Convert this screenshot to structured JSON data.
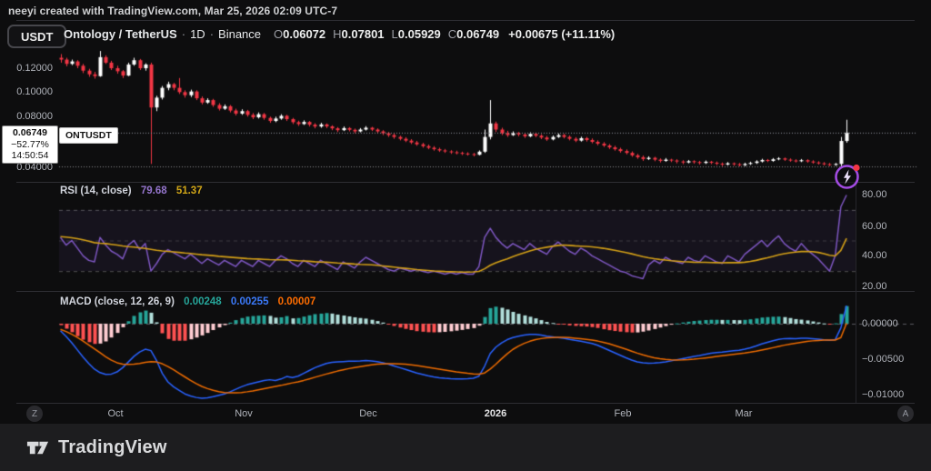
{
  "attribution": "neeyi created with TradingView.com, Mar 25, 2026 02:09 UTC-7",
  "toolbar": {
    "currency_button": "USDT"
  },
  "legend": {
    "symbol_title": "Ontology / TetherUS",
    "interval": "1D",
    "exchange": "Binance",
    "separator": "·",
    "o_label": "O",
    "o_value": "0.06072",
    "h_label": "H",
    "h_value": "0.07801",
    "l_label": "L",
    "l_value": "0.05929",
    "c_label": "C",
    "c_value": "0.06749",
    "change": "+0.00675 (+11.11%)"
  },
  "price_scale": {
    "t0": "0.12000",
    "t1": "0.10000",
    "t2": "0.08000",
    "t3": "0.04000"
  },
  "price_label": {
    "price": "0.06749",
    "change_pct": "−52.77%",
    "countdown": "14:50:54"
  },
  "symbol_tag": "ONTUSDT",
  "rsi_pane": {
    "title": "RSI (14, close)",
    "value_rsi": "79.68",
    "value_ma": "51.37",
    "s0": "80.00",
    "s1": "60.00",
    "s2": "40.00",
    "s3": "20.00"
  },
  "macd_pane": {
    "title": "MACD (close, 12, 26, 9)",
    "value_hist": "0.00248",
    "value_macd": "0.00255",
    "value_signal": "0.00007",
    "s0": "0.00000",
    "s1": "−0.00500",
    "s2": "−0.01000"
  },
  "time_axis": {
    "left_button": "Z",
    "right_button": "A",
    "m0": "Oct",
    "m1": "Nov",
    "m2": "Dec",
    "m3": "2026",
    "m4": "Feb",
    "m5": "Mar"
  },
  "footer": {
    "logo_text": "TradingView"
  },
  "colors": {
    "up": "#ffffff",
    "down": "#f23645",
    "rsi_line": "#7e57c2",
    "rsi_ma_line": "#d4a017",
    "rsi_value_text": "#9575cd",
    "rsi_ma_text": "#d0a517",
    "macd_line": "#2962ff",
    "signal_line": "#ef6c00",
    "hist_up_grow": "#26a69a",
    "hist_up_fall": "#b2dfdb",
    "hist_dn_fall": "#ff5252",
    "hist_dn_grow": "#ffcdd2",
    "hist_text": "#26a69a",
    "macd_text": "#3b79f7",
    "signal_text": "#ff6d00",
    "price_line": "#9598a1",
    "level_line": "#8a8a8e",
    "band_fill": "rgba(126,87,194,0.09)",
    "band_dash": "rgba(255,255,255,0.28)"
  },
  "chart_data": {
    "type": "candlestick_with_indicators",
    "symbol": "ONTUSDT",
    "interval": "1D",
    "price_scale_factor": 0.0001,
    "macd_scale_factor": 1e-05,
    "price_axis": {
      "ticks": [
        0.12,
        0.1,
        0.08,
        0.04
      ],
      "current_price": 0.06749,
      "level_line": 0.04
    },
    "rsi_axis": {
      "ticks": [
        80,
        60,
        40,
        20
      ],
      "band": [
        70,
        30
      ],
      "mid": 50
    },
    "macd_axis": {
      "ticks": [
        0,
        -0.005,
        -0.01
      ]
    },
    "candles": [
      [
        1285,
        1315,
        1245,
        1270
      ],
      [
        1270,
        1285,
        1215,
        1235
      ],
      [
        1235,
        1270,
        1225,
        1255
      ],
      [
        1255,
        1265,
        1200,
        1220
      ],
      [
        1220,
        1235,
        1160,
        1180
      ],
      [
        1180,
        1195,
        1130,
        1150
      ],
      [
        1150,
        1170,
        1115,
        1135
      ],
      [
        1135,
        1340,
        1130,
        1290
      ],
      [
        1290,
        1305,
        1235,
        1245
      ],
      [
        1245,
        1260,
        1185,
        1200
      ],
      [
        1200,
        1220,
        1155,
        1175
      ],
      [
        1175,
        1185,
        1120,
        1140
      ],
      [
        1140,
        1245,
        1135,
        1230
      ],
      [
        1230,
        1285,
        1220,
        1265
      ],
      [
        1265,
        1275,
        1185,
        1200
      ],
      [
        1200,
        1240,
        1180,
        1230
      ],
      [
        1230,
        1245,
        420,
        880
      ],
      [
        880,
        975,
        850,
        960
      ],
      [
        960,
        1055,
        945,
        1040
      ],
      [
        1040,
        1090,
        1020,
        1070
      ],
      [
        1070,
        1080,
        1020,
        1040
      ],
      [
        1040,
        1120,
        990,
        1005
      ],
      [
        1005,
        1020,
        960,
        980
      ],
      [
        980,
        1025,
        965,
        1010
      ],
      [
        1010,
        1020,
        940,
        955
      ],
      [
        955,
        970,
        905,
        920
      ],
      [
        920,
        955,
        910,
        940
      ],
      [
        940,
        950,
        885,
        900
      ],
      [
        900,
        915,
        855,
        870
      ],
      [
        870,
        905,
        860,
        890
      ],
      [
        890,
        900,
        840,
        855
      ],
      [
        855,
        870,
        815,
        830
      ],
      [
        830,
        865,
        820,
        850
      ],
      [
        850,
        860,
        805,
        820
      ],
      [
        820,
        835,
        785,
        800
      ],
      [
        800,
        840,
        790,
        825
      ],
      [
        825,
        835,
        780,
        795
      ],
      [
        795,
        805,
        755,
        770
      ],
      [
        770,
        805,
        760,
        790
      ],
      [
        790,
        825,
        780,
        812
      ],
      [
        812,
        820,
        770,
        785
      ],
      [
        785,
        795,
        745,
        760
      ],
      [
        760,
        772,
        730,
        745
      ],
      [
        745,
        775,
        738,
        762
      ],
      [
        762,
        770,
        725,
        740
      ],
      [
        740,
        752,
        710,
        725
      ],
      [
        725,
        755,
        715,
        742
      ],
      [
        742,
        750,
        712,
        726
      ],
      [
        726,
        735,
        695,
        710
      ],
      [
        710,
        720,
        680,
        695
      ],
      [
        695,
        725,
        688,
        712
      ],
      [
        712,
        720,
        685,
        698
      ],
      [
        698,
        708,
        670,
        685
      ],
      [
        685,
        712,
        678,
        700
      ],
      [
        700,
        728,
        692,
        715
      ],
      [
        715,
        722,
        688,
        700
      ],
      [
        700,
        710,
        672,
        685
      ],
      [
        685,
        695,
        655,
        670
      ],
      [
        670,
        680,
        640,
        655
      ],
      [
        655,
        668,
        625,
        640
      ],
      [
        640,
        650,
        612,
        625
      ],
      [
        625,
        638,
        598,
        610
      ],
      [
        610,
        622,
        582,
        595
      ],
      [
        595,
        608,
        568,
        580
      ],
      [
        580,
        592,
        552,
        565
      ],
      [
        565,
        578,
        540,
        552
      ],
      [
        552,
        565,
        528,
        540
      ],
      [
        540,
        552,
        518,
        530
      ],
      [
        530,
        542,
        510,
        522
      ],
      [
        522,
        532,
        502,
        515
      ],
      [
        515,
        528,
        498,
        510
      ],
      [
        510,
        520,
        492,
        505
      ],
      [
        505,
        515,
        488,
        500
      ],
      [
        500,
        510,
        482,
        495
      ],
      [
        495,
        530,
        490,
        520
      ],
      [
        520,
        700,
        510,
        640
      ],
      [
        640,
        940,
        620,
        750
      ],
      [
        750,
        765,
        680,
        700
      ],
      [
        700,
        715,
        655,
        670
      ],
      [
        670,
        690,
        640,
        655
      ],
      [
        655,
        685,
        648,
        670
      ],
      [
        670,
        680,
        645,
        660
      ],
      [
        660,
        672,
        632,
        645
      ],
      [
        645,
        678,
        638,
        665
      ],
      [
        665,
        675,
        638,
        650
      ],
      [
        650,
        662,
        622,
        635
      ],
      [
        635,
        648,
        608,
        620
      ],
      [
        620,
        652,
        612,
        640
      ],
      [
        640,
        668,
        632,
        655
      ],
      [
        655,
        665,
        628,
        640
      ],
      [
        640,
        652,
        612,
        625
      ],
      [
        625,
        638,
        598,
        610
      ],
      [
        610,
        642,
        602,
        630
      ],
      [
        630,
        640,
        602,
        615
      ],
      [
        615,
        628,
        588,
        600
      ],
      [
        600,
        612,
        572,
        585
      ],
      [
        585,
        598,
        558,
        570
      ],
      [
        570,
        582,
        542,
        555
      ],
      [
        555,
        568,
        528,
        540
      ],
      [
        540,
        552,
        512,
        525
      ],
      [
        525,
        538,
        498,
        510
      ],
      [
        510,
        522,
        478,
        490
      ],
      [
        490,
        502,
        462,
        475
      ],
      [
        475,
        488,
        445,
        460
      ],
      [
        460,
        482,
        452,
        470
      ],
      [
        470,
        478,
        442,
        455
      ],
      [
        455,
        465,
        432,
        445
      ],
      [
        445,
        468,
        438,
        455
      ],
      [
        455,
        462,
        435,
        448
      ],
      [
        448,
        458,
        425,
        440
      ],
      [
        440,
        450,
        418,
        432
      ],
      [
        432,
        452,
        425,
        442
      ],
      [
        442,
        450,
        422,
        435
      ],
      [
        435,
        445,
        415,
        428
      ],
      [
        428,
        448,
        420,
        438
      ],
      [
        438,
        445,
        418,
        430
      ],
      [
        430,
        440,
        410,
        422
      ],
      [
        422,
        432,
        402,
        415
      ],
      [
        415,
        435,
        408,
        425
      ],
      [
        425,
        432,
        405,
        418
      ],
      [
        418,
        428,
        400,
        410
      ],
      [
        410,
        430,
        402,
        420
      ],
      [
        420,
        438,
        412,
        428
      ],
      [
        428,
        450,
        420,
        440
      ],
      [
        440,
        462,
        432,
        452
      ],
      [
        452,
        460,
        435,
        445
      ],
      [
        445,
        468,
        438,
        458
      ],
      [
        458,
        475,
        450,
        465
      ],
      [
        465,
        472,
        445,
        455
      ],
      [
        455,
        465,
        438,
        448
      ],
      [
        448,
        458,
        432,
        442
      ],
      [
        442,
        460,
        435,
        450
      ],
      [
        450,
        458,
        430,
        440
      ],
      [
        440,
        450,
        422,
        432
      ],
      [
        432,
        442,
        415,
        425
      ],
      [
        425,
        435,
        408,
        418
      ],
      [
        418,
        428,
        402,
        412
      ],
      [
        412,
        428,
        405,
        420
      ],
      [
        420,
        640,
        398,
        607
      ],
      [
        607,
        780,
        593,
        675
      ]
    ],
    "rsi": [
      52,
      47,
      50,
      45,
      40,
      37,
      36,
      52,
      47,
      43,
      41,
      38,
      47,
      50,
      44,
      48,
      30,
      35,
      41,
      44,
      42,
      40,
      38,
      41,
      38,
      35,
      38,
      36,
      34,
      37,
      35,
      33,
      37,
      35,
      33,
      37,
      35,
      33,
      37,
      40,
      38,
      35,
      33,
      37,
      35,
      33,
      37,
      35,
      33,
      31,
      36,
      34,
      32,
      36,
      39,
      37,
      35,
      33,
      31,
      30,
      32,
      31,
      30,
      31,
      30,
      29,
      30,
      29,
      28,
      29,
      28,
      29,
      28,
      28,
      33,
      52,
      58,
      52,
      48,
      45,
      48,
      46,
      44,
      48,
      45,
      43,
      41,
      46,
      49,
      46,
      43,
      41,
      45,
      43,
      40,
      38,
      36,
      34,
      32,
      30,
      29,
      27,
      26,
      25,
      34,
      37,
      35,
      39,
      37,
      36,
      35,
      39,
      37,
      36,
      40,
      38,
      36,
      35,
      40,
      38,
      36,
      41,
      44,
      47,
      50,
      46,
      50,
      53,
      48,
      45,
      43,
      48,
      44,
      41,
      38,
      34,
      30,
      40,
      72,
      79.68
    ],
    "rsi_ma": [
      52.5,
      52.2,
      51.8,
      51.2,
      50.4,
      49.5,
      48.6,
      48.2,
      48,
      47.5,
      47,
      46.4,
      46,
      45.7,
      45.2,
      44.8,
      44.2,
      43.6,
      43.2,
      42.9,
      42.6,
      42.2,
      41.8,
      41.5,
      41.1,
      40.7,
      40.4,
      40.1,
      39.7,
      39.4,
      39.1,
      38.8,
      38.5,
      38.2,
      38,
      37.9,
      37.7,
      37.5,
      37.4,
      37.4,
      37.3,
      37.1,
      36.8,
      36.6,
      36.4,
      36.1,
      35.9,
      35.8,
      35.6,
      35.3,
      35.1,
      34.9,
      34.6,
      34.4,
      34.3,
      34.1,
      33.8,
      33.4,
      33,
      32.6,
      32.2,
      31.8,
      31.4,
      31,
      30.7,
      30.4,
      30.1,
      29.9,
      29.7,
      29.6,
      29.5,
      29.4,
      29.4,
      29.5,
      29.8,
      31.5,
      33.8,
      35.4,
      36.8,
      38,
      39.5,
      40.8,
      42,
      43.2,
      44.2,
      45,
      45.6,
      46.2,
      46.8,
      47,
      46.8,
      46.5,
      46.3,
      46.1,
      45.8,
      45.4,
      44.9,
      44.3,
      43.6,
      42.9,
      42.1,
      41.3,
      40.4,
      39.5,
      38.7,
      38.1,
      37.6,
      37.2,
      36.8,
      36.5,
      36.2,
      36,
      35.8,
      35.7,
      35.7,
      35.6,
      35.5,
      35.4,
      35.5,
      35.5,
      35.5,
      35.8,
      36.3,
      37,
      37.9,
      38.7,
      39.6,
      40.6,
      41.4,
      42,
      42.4,
      42.8,
      42.9,
      42.7,
      42.2,
      41.4,
      40.3,
      39.9,
      43.5,
      51.37
    ],
    "macd": [
      -100,
      -180,
      -270,
      -370,
      -470,
      -560,
      -640,
      -690,
      -715,
      -710,
      -680,
      -620,
      -540,
      -460,
      -400,
      -360,
      -380,
      -520,
      -700,
      -820,
      -890,
      -940,
      -990,
      -1020,
      -1040,
      -1050,
      -1045,
      -1030,
      -1010,
      -990,
      -960,
      -925,
      -890,
      -860,
      -840,
      -820,
      -800,
      -790,
      -800,
      -780,
      -745,
      -760,
      -740,
      -700,
      -660,
      -620,
      -590,
      -560,
      -545,
      -540,
      -535,
      -530,
      -528,
      -525,
      -520,
      -525,
      -535,
      -550,
      -570,
      -595,
      -620,
      -645,
      -670,
      -695,
      -715,
      -735,
      -750,
      -762,
      -770,
      -775,
      -778,
      -778,
      -775,
      -770,
      -740,
      -600,
      -420,
      -330,
      -270,
      -225,
      -195,
      -175,
      -160,
      -150,
      -150,
      -160,
      -175,
      -185,
      -195,
      -205,
      -220,
      -235,
      -248,
      -262,
      -280,
      -305,
      -340,
      -375,
      -410,
      -445,
      -480,
      -512,
      -538,
      -552,
      -558,
      -555,
      -548,
      -538,
      -524,
      -508,
      -493,
      -478,
      -462,
      -448,
      -432,
      -418,
      -408,
      -400,
      -390,
      -382,
      -375,
      -360,
      -340,
      -315,
      -285,
      -262,
      -240,
      -220,
      -210,
      -208,
      -210,
      -205,
      -205,
      -210,
      -218,
      -228,
      -235,
      -225,
      -60,
      255
    ],
    "signal": [
      -80,
      -110,
      -150,
      -195,
      -245,
      -300,
      -355,
      -410,
      -465,
      -515,
      -550,
      -570,
      -575,
      -570,
      -560,
      -545,
      -535,
      -540,
      -565,
      -605,
      -650,
      -700,
      -750,
      -800,
      -845,
      -885,
      -915,
      -940,
      -958,
      -970,
      -975,
      -975,
      -970,
      -960,
      -948,
      -933,
      -917,
      -900,
      -885,
      -870,
      -852,
      -835,
      -820,
      -800,
      -778,
      -755,
      -732,
      -710,
      -688,
      -668,
      -650,
      -633,
      -618,
      -605,
      -592,
      -580,
      -572,
      -566,
      -563,
      -563,
      -566,
      -572,
      -580,
      -590,
      -602,
      -615,
      -628,
      -642,
      -655,
      -668,
      -680,
      -690,
      -700,
      -708,
      -712,
      -695,
      -640,
      -570,
      -495,
      -425,
      -362,
      -315,
      -277,
      -248,
      -225,
      -210,
      -200,
      -195,
      -192,
      -192,
      -196,
      -204,
      -213,
      -222,
      -232,
      -245,
      -262,
      -283,
      -307,
      -333,
      -360,
      -388,
      -415,
      -440,
      -462,
      -480,
      -494,
      -504,
      -510,
      -512,
      -510,
      -506,
      -500,
      -492,
      -483,
      -473,
      -463,
      -453,
      -443,
      -433,
      -424,
      -414,
      -402,
      -388,
      -372,
      -355,
      -338,
      -320,
      -303,
      -288,
      -275,
      -262,
      -251,
      -242,
      -236,
      -232,
      -231,
      -230,
      -196,
      7
    ]
  }
}
